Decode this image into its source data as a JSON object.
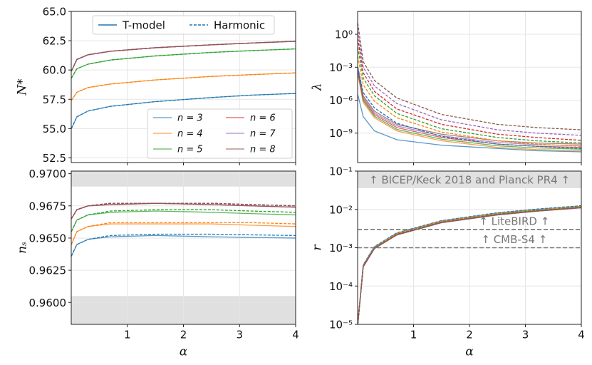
{
  "chart_data": [
    {
      "type": "line",
      "ylabel": "N*",
      "xlim": [
        0,
        4
      ],
      "xticks": [
        1,
        2,
        3,
        4
      ],
      "ylim": [
        52.1,
        65
      ],
      "yticks": [
        {
          "value": 52.5,
          "label": "52.5"
        },
        {
          "value": 55,
          "label": "55.0"
        },
        {
          "value": 57.5,
          "label": "57.5"
        },
        {
          "value": 60,
          "label": "60.0"
        },
        {
          "value": 62.5,
          "label": "62.5"
        },
        {
          "value": 65,
          "label": "65.0"
        }
      ],
      "grid": true,
      "legend": "lower right",
      "style_legend": [
        "T-model",
        "Harmonic"
      ],
      "style_legend_loc": "upper center",
      "x": [
        0.003,
        0.1,
        0.3,
        0.7,
        1.5,
        2.5,
        3.2,
        4
      ],
      "series": [
        {
          "name": "n = 3",
          "color": "#1f77b4",
          "values": [
            55.0,
            56.0,
            56.5,
            56.9,
            57.3,
            57.65,
            57.85,
            58.0
          ],
          "harmonic": [
            55.0,
            56.0,
            56.5,
            56.9,
            57.3,
            57.65,
            57.85,
            58.0
          ]
        },
        {
          "name": "n = 4",
          "color": "#ff7f0e",
          "values": [
            57.4,
            58.1,
            58.5,
            58.8,
            59.15,
            59.45,
            59.6,
            59.75
          ],
          "harmonic": [
            57.4,
            58.1,
            58.5,
            58.8,
            59.15,
            59.45,
            59.6,
            59.75
          ]
        },
        {
          "name": "n = 5",
          "color": "#2ca02c",
          "values": [
            59.3,
            60.1,
            60.5,
            60.85,
            61.2,
            61.5,
            61.65,
            61.8
          ],
          "harmonic": [
            59.3,
            60.1,
            60.5,
            60.85,
            61.2,
            61.5,
            61.65,
            61.8
          ]
        },
        {
          "name": "n = 6",
          "color": "#d62728",
          "values": [
            59.9,
            60.9,
            61.3,
            61.6,
            61.9,
            62.15,
            62.3,
            62.45
          ],
          "harmonic": [
            59.9,
            60.9,
            61.3,
            61.6,
            61.9,
            62.15,
            62.3,
            62.45
          ]
        },
        {
          "name": "n = 7",
          "color": "#9467bd",
          "values": [
            59.9,
            60.9,
            61.3,
            61.6,
            61.9,
            62.15,
            62.3,
            62.45
          ],
          "harmonic": [
            59.9,
            60.9,
            61.3,
            61.6,
            61.9,
            62.15,
            62.3,
            62.45
          ]
        },
        {
          "name": "n = 8",
          "color": "#8c564b",
          "values": [
            59.9,
            60.9,
            61.3,
            61.6,
            61.9,
            62.15,
            62.3,
            62.45
          ],
          "harmonic": [
            59.9,
            60.9,
            61.3,
            61.6,
            61.9,
            62.15,
            62.3,
            62.45
          ]
        }
      ]
    },
    {
      "type": "line",
      "ylabel": "λ",
      "xlim": [
        0,
        4
      ],
      "xticks": [
        1,
        2,
        3,
        4
      ],
      "log_y": true,
      "ylim": [
        2.1e-12,
        120
      ],
      "yticks": [
        {
          "value": 1e-09,
          "label": "10⁻⁹"
        },
        {
          "value": 1e-06,
          "label": "10⁻⁶"
        },
        {
          "value": 0.001,
          "label": "10⁻³"
        },
        {
          "value": 1,
          "label": "10⁰"
        }
      ],
      "grid": true,
      "x": [
        0.003,
        0.1,
        0.3,
        0.7,
        1.5,
        2.5,
        3.2,
        4
      ],
      "series": [
        {
          "color": "#1f77b4",
          "values": [
            3.2e-06,
            3.2e-08,
            1.6e-09,
            2.5e-10,
            8e-11,
            4e-11,
            2.5e-11,
            2e-11
          ],
          "harmonic": [
            0.001,
            5e-06,
            2e-07,
            8e-09,
            5e-10,
            1e-10,
            6.3e-11,
            4e-11
          ]
        },
        {
          "color": "#ff7f0e",
          "values": [
            0.00025,
            6.3e-07,
            2.5e-08,
            1.6e-09,
            2e-10,
            5e-11,
            3.2e-11,
            2.5e-11
          ],
          "harmonic": [
            0.01,
            2.5e-05,
            8e-07,
            2.5e-08,
            1.26e-09,
            2e-10,
            1e-10,
            6.3e-11
          ]
        },
        {
          "color": "#2ca02c",
          "values": [
            0.00035,
            9e-07,
            3.5e-08,
            2.2e-09,
            2.8e-10,
            7e-11,
            4.5e-11,
            3.5e-11
          ],
          "harmonic": [
            0.063,
            0.0001,
            2.5e-06,
            6.3e-08,
            2.5e-09,
            4e-10,
            2e-10,
            1.26e-10
          ]
        },
        {
          "color": "#d62728",
          "values": [
            0.0005,
            1.26e-06,
            5e-08,
            3.2e-09,
            4e-10,
            1e-10,
            6.3e-11,
            5e-11
          ],
          "harmonic": [
            0.4,
            0.00032,
            6.3e-06,
            1.6e-07,
            6.3e-09,
            8e-10,
            4e-10,
            2.2e-10
          ]
        },
        {
          "color": "#9467bd",
          "values": [
            0.0007,
            1.8e-06,
            7e-08,
            4.5e-09,
            5.6e-10,
            1.4e-10,
            9e-11,
            7e-11
          ],
          "harmonic": [
            2,
            0.001,
            2e-05,
            5e-07,
            1.6e-08,
            2e-09,
            1e-09,
            6.3e-10
          ]
        },
        {
          "color": "#8c564b",
          "values": [
            0.001,
            2.5e-06,
            1e-07,
            6.3e-09,
            8e-10,
            2e-10,
            1.26e-10,
            1e-10
          ],
          "harmonic": [
            10,
            0.0032,
            6.3e-05,
            1.6e-06,
            5e-08,
            6.3e-09,
            3.2e-09,
            2e-09
          ]
        }
      ]
    },
    {
      "type": "line",
      "ylabel": "nₛ",
      "xlabel": "α",
      "xlim": [
        0,
        4
      ],
      "xticks": [
        1,
        2,
        3,
        4
      ],
      "ylim": [
        0.9583,
        0.9702
      ],
      "yticks": [
        {
          "value": 0.96,
          "label": "0.9600"
        },
        {
          "value": 0.9625,
          "label": "0.9625"
        },
        {
          "value": 0.965,
          "label": "0.9650"
        },
        {
          "value": 0.9675,
          "label": "0.9675"
        },
        {
          "value": 0.97,
          "label": "0.9700"
        }
      ],
      "grid": true,
      "shaded": [
        {
          "from": 0.9583,
          "to": 0.9605
        },
        {
          "from": 0.969,
          "to": 0.9702
        }
      ],
      "x": [
        0.003,
        0.1,
        0.3,
        0.7,
        1.5,
        2.5,
        3.2,
        4
      ],
      "series": [
        {
          "color": "#1f77b4",
          "values": [
            0.9636,
            0.9645,
            0.9649,
            0.9651,
            0.9652,
            0.9651,
            0.96505,
            0.965
          ],
          "harmonic": [
            0.9636,
            0.9645,
            0.9649,
            0.9652,
            0.9653,
            0.9653,
            0.96525,
            0.9652
          ]
        },
        {
          "color": "#ff7f0e",
          "values": [
            0.9645,
            0.9655,
            0.9659,
            0.9661,
            0.9661,
            0.9661,
            0.966,
            0.9659
          ],
          "harmonic": [
            0.9645,
            0.9655,
            0.9659,
            0.9662,
            0.9662,
            0.9662,
            0.9662,
            0.9661
          ]
        },
        {
          "color": "#2ca02c",
          "values": [
            0.9655,
            0.9664,
            0.9668,
            0.967,
            0.9671,
            0.967,
            0.9669,
            0.9668
          ],
          "harmonic": [
            0.9655,
            0.9664,
            0.9668,
            0.9671,
            0.9672,
            0.9672,
            0.9671,
            0.967
          ]
        },
        {
          "color": "#d62728",
          "values": [
            0.9665,
            0.9672,
            0.9675,
            0.9676,
            0.9677,
            0.9676,
            0.9675,
            0.9674
          ],
          "harmonic": [
            0.9665,
            0.9672,
            0.9675,
            0.9677,
            0.9677,
            0.9677,
            0.9676,
            0.9675
          ]
        },
        {
          "color": "#9467bd",
          "values": [
            0.9665,
            0.9672,
            0.9675,
            0.9676,
            0.9677,
            0.9676,
            0.9675,
            0.9674
          ],
          "harmonic": [
            0.9665,
            0.9672,
            0.9675,
            0.9677,
            0.9677,
            0.9677,
            0.9676,
            0.9675
          ]
        },
        {
          "color": "#8c564b",
          "values": [
            0.9665,
            0.9672,
            0.9675,
            0.9676,
            0.9677,
            0.9676,
            0.9675,
            0.9674
          ],
          "harmonic": [
            0.9665,
            0.9672,
            0.9675,
            0.9677,
            0.9677,
            0.9677,
            0.9676,
            0.9675
          ]
        }
      ]
    },
    {
      "type": "line",
      "ylabel": "r",
      "xlabel": "α",
      "xlim": [
        0,
        4
      ],
      "xticks": [
        1,
        2,
        3,
        4
      ],
      "log_y": true,
      "ylim": [
        1e-05,
        0.1
      ],
      "yticks": [
        {
          "value": 1e-05,
          "label": "10⁻⁵"
        },
        {
          "value": 0.0001,
          "label": "10⁻⁴"
        },
        {
          "value": 0.001,
          "label": "10⁻³"
        },
        {
          "value": 0.01,
          "label": "10⁻²"
        },
        {
          "value": 0.1,
          "label": "10⁻¹"
        }
      ],
      "grid": true,
      "shaded": [
        {
          "from": 0.036,
          "to": 0.1,
          "label": "↑ BICEP/Keck 2018 and Planck PR4 ↑"
        }
      ],
      "hlines": [
        {
          "value": 0.003,
          "label": "↑ LiteBIRD ↑"
        },
        {
          "value": 0.001,
          "label": "↑ CMB-S4 ↑"
        }
      ],
      "x": [
        0.003,
        0.1,
        0.3,
        0.7,
        1.5,
        2.5,
        3.2,
        4
      ],
      "series": [
        {
          "color": "#1f77b4",
          "values": [
            1.1e-05,
            0.00035,
            0.00105,
            0.0024,
            0.005,
            0.008,
            0.01,
            0.0122
          ],
          "harmonic": [
            1.1e-05,
            0.00036,
            0.00107,
            0.00245,
            0.0051,
            0.0082,
            0.0102,
            0.0125
          ]
        },
        {
          "color": "#ff7f0e",
          "values": [
            1.05e-05,
            0.00033,
            0.001,
            0.0023,
            0.0048,
            0.0076,
            0.0095,
            0.0116
          ],
          "harmonic": [
            1.05e-05,
            0.00034,
            0.00102,
            0.00235,
            0.0049,
            0.0078,
            0.0097,
            0.0119
          ]
        },
        {
          "color": "#2ca02c",
          "values": [
            1e-05,
            0.00032,
            0.00097,
            0.0022,
            0.0046,
            0.0074,
            0.0092,
            0.0112
          ],
          "harmonic": [
            1e-05,
            0.00033,
            0.00099,
            0.00225,
            0.0047,
            0.0075,
            0.0094,
            0.0115
          ]
        },
        {
          "color": "#d62728",
          "values": [
            1e-05,
            0.000315,
            0.00095,
            0.00215,
            0.0045,
            0.0072,
            0.009,
            0.011
          ],
          "harmonic": [
            1e-05,
            0.00032,
            0.00096,
            0.0022,
            0.0046,
            0.0073,
            0.0091,
            0.0112
          ]
        },
        {
          "color": "#9467bd",
          "values": [
            1e-05,
            0.000315,
            0.00095,
            0.00215,
            0.0045,
            0.0072,
            0.009,
            0.011
          ],
          "harmonic": [
            1e-05,
            0.00032,
            0.00096,
            0.0022,
            0.0046,
            0.0073,
            0.0091,
            0.0112
          ]
        },
        {
          "color": "#8c564b",
          "values": [
            1e-05,
            0.000315,
            0.00095,
            0.00215,
            0.0045,
            0.0072,
            0.009,
            0.011
          ],
          "harmonic": [
            1e-05,
            0.00032,
            0.00096,
            0.0022,
            0.0046,
            0.0073,
            0.0091,
            0.0112
          ]
        }
      ]
    }
  ]
}
